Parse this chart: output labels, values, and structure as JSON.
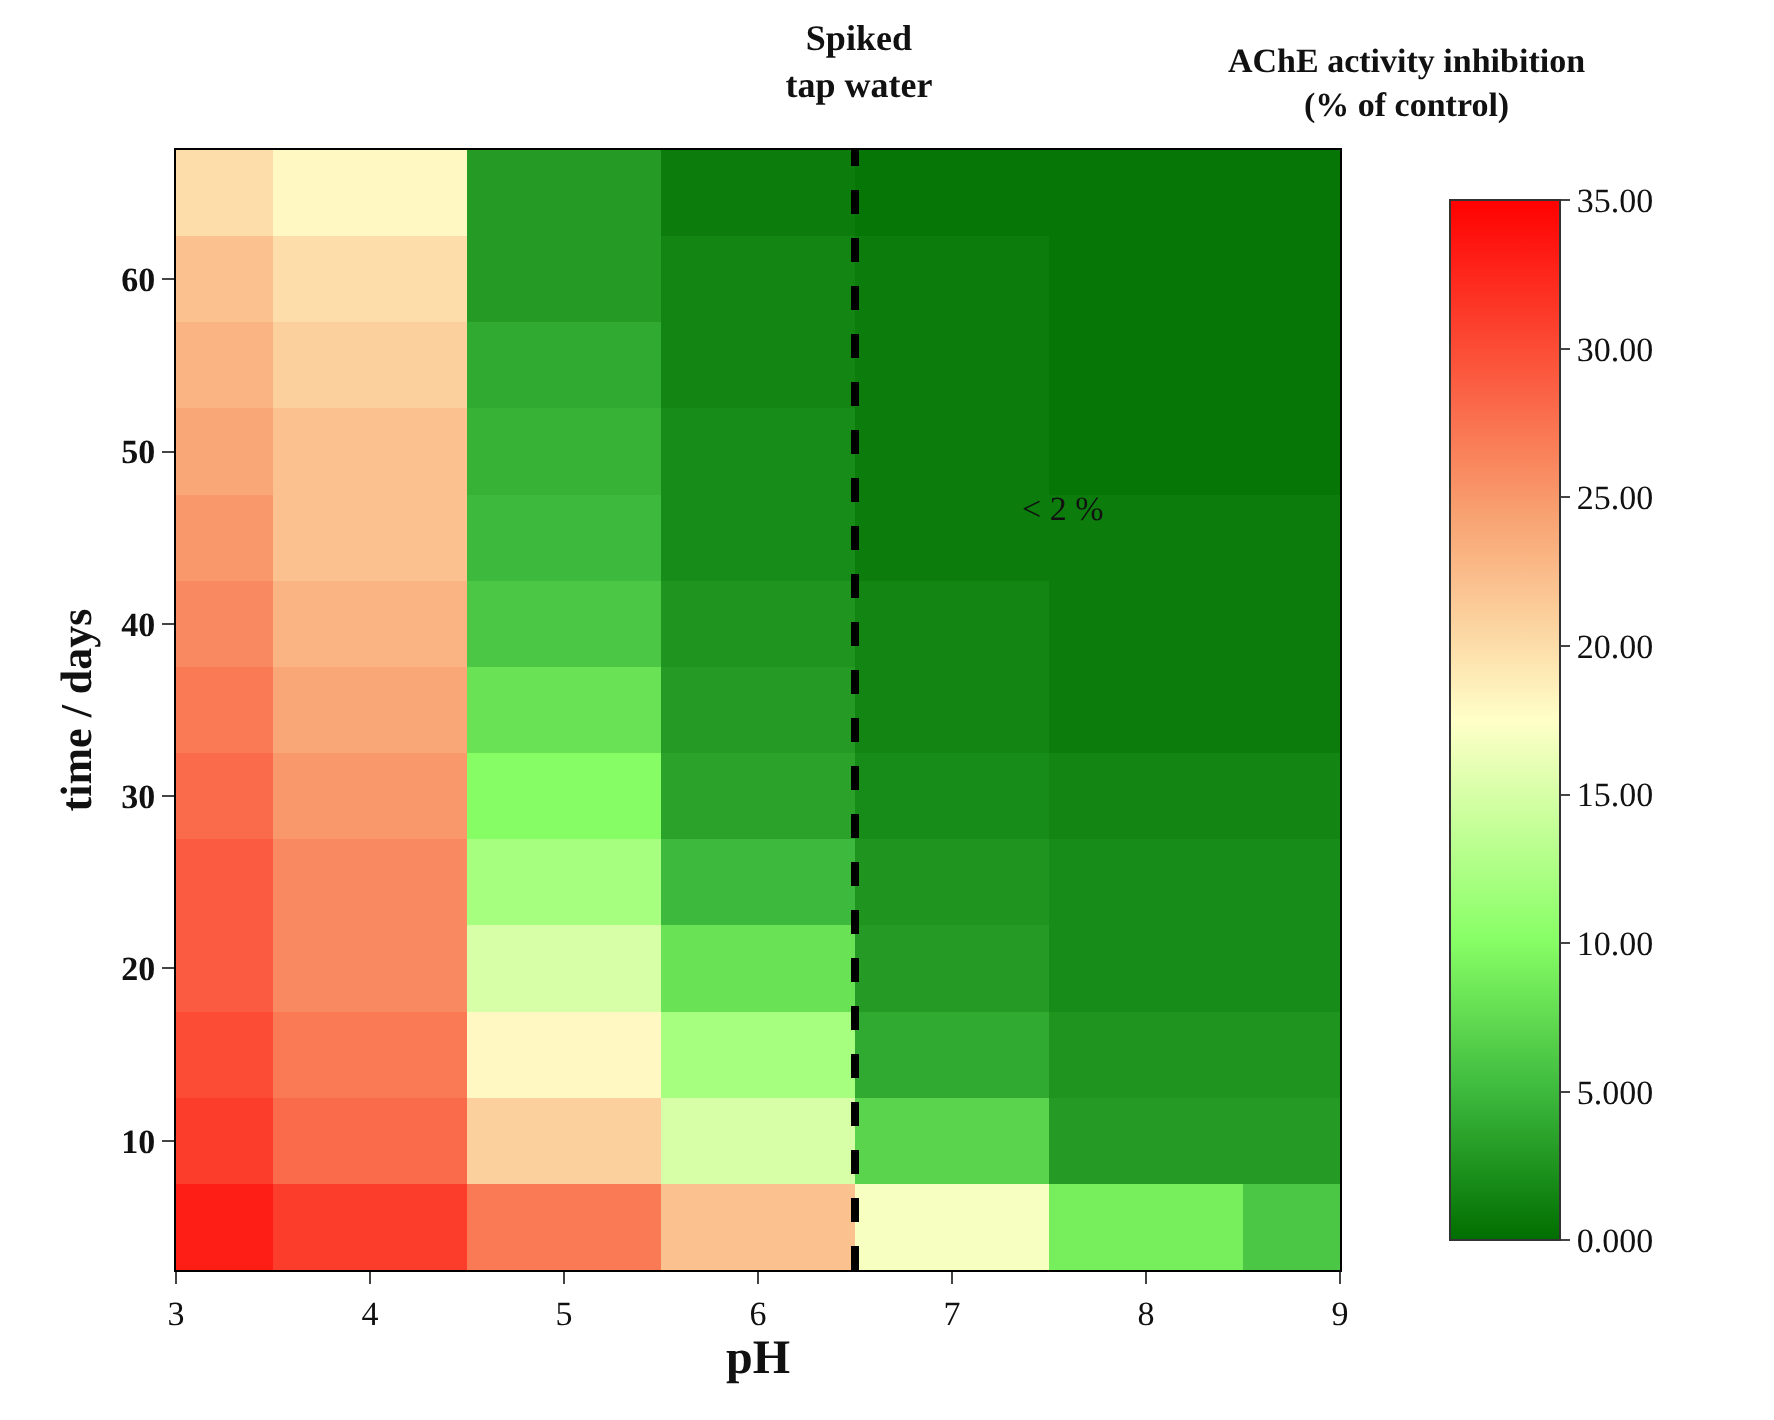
{
  "chart_data": {
    "type": "heatmap",
    "title": "Spiked\ntap water",
    "xlabel": "pH",
    "ylabel": "time / days",
    "clabel": "AChE activity inhibition\n(% of control)",
    "x": [
      3,
      4,
      5,
      6,
      7,
      8,
      9
    ],
    "y_categories": [
      null,
      "60",
      null,
      "50",
      null,
      "40",
      null,
      "30",
      null,
      "20",
      null,
      "10",
      null
    ],
    "cells": [
      [
        20,
        18,
        3,
        1,
        0.5,
        0.5,
        0.5
      ],
      [
        22,
        20,
        3,
        1.5,
        1,
        0.5,
        0.5
      ],
      [
        23,
        21,
        4,
        1.5,
        1,
        0.5,
        0.5
      ],
      [
        24,
        22,
        4.5,
        2,
        1,
        0.5,
        0.5
      ],
      [
        25,
        22,
        5,
        2,
        1,
        1,
        1
      ],
      [
        26,
        23,
        6,
        2.5,
        1.5,
        1,
        1
      ],
      [
        27,
        24,
        8,
        3,
        1.5,
        1,
        1
      ],
      [
        28,
        25,
        10,
        3.5,
        2,
        1.5,
        1.5
      ],
      [
        29,
        26,
        12,
        5,
        2.5,
        2,
        2
      ],
      [
        29,
        26,
        15,
        8,
        3,
        2,
        2
      ],
      [
        30,
        27,
        18,
        12,
        4,
        2.5,
        2.5
      ],
      [
        31,
        28,
        21,
        15,
        7,
        3,
        3
      ],
      [
        33,
        31,
        27,
        22,
        17,
        9,
        6
      ]
    ],
    "clim": [
      0,
      35
    ],
    "cticks": [
      {
        "value": 0,
        "label": "0.000"
      },
      {
        "value": 5,
        "label": "5.000"
      },
      {
        "value": 10,
        "label": "10.00"
      },
      {
        "value": 15,
        "label": "15.00"
      },
      {
        "value": 20,
        "label": "20.00"
      },
      {
        "value": 25,
        "label": "25.00"
      },
      {
        "value": 30,
        "label": "30.00"
      },
      {
        "value": 35,
        "label": "35.00"
      }
    ],
    "xlim": [
      3,
      9
    ],
    "xticks": [
      3,
      4,
      5,
      6,
      7,
      8,
      9
    ],
    "ref_lines": [
      {
        "axis": "x",
        "value": 6.5,
        "color": "#000000",
        "line_style": "dashed"
      }
    ],
    "annotations": [
      "< 2 %"
    ]
  }
}
